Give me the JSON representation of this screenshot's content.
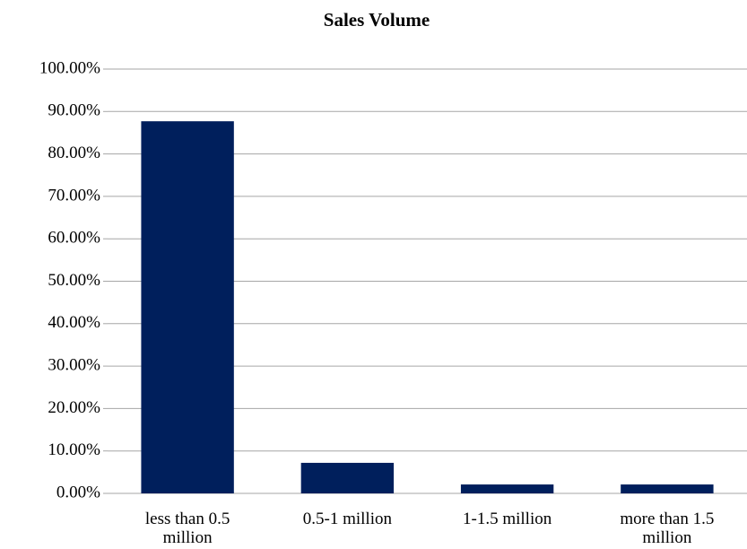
{
  "chart_data": {
    "type": "bar",
    "title": "Sales Volume",
    "categories": [
      "less than 0.5 million",
      "0.5-1 million",
      "1-1.5 million",
      "more than 1.5 million"
    ],
    "values": [
      87.7,
      7.2,
      2.1,
      2.1
    ],
    "color": "#001f5c",
    "ylim": [
      0,
      100
    ],
    "yticks": [
      {
        "value": 0,
        "label": "0.00%"
      },
      {
        "value": 10,
        "label": "10.00%"
      },
      {
        "value": 20,
        "label": "20.00%"
      },
      {
        "value": 30,
        "label": "30.00%"
      },
      {
        "value": 40,
        "label": "40.00%"
      },
      {
        "value": 50,
        "label": "50.00%"
      },
      {
        "value": 60,
        "label": "60.00%"
      },
      {
        "value": 70,
        "label": "70.00%"
      },
      {
        "value": 80,
        "label": "80.00%"
      },
      {
        "value": 90,
        "label": "90.00%"
      },
      {
        "value": 100,
        "label": "100.00%"
      }
    ],
    "grid": true
  }
}
